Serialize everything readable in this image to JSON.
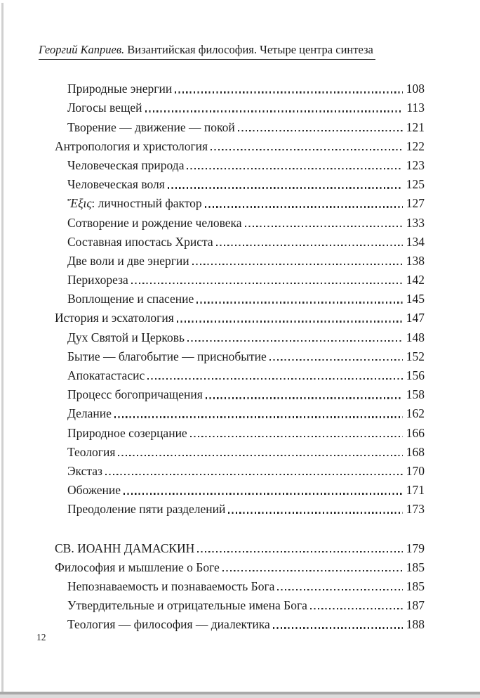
{
  "colors": {
    "text": "#1c1c1c",
    "page_background": "#ffffff",
    "scan_left_line": "#d0d0d0",
    "scan_bottom_dark": "#a9a9a9",
    "scan_bottom_light": "#dcdcdc"
  },
  "header": {
    "author": "Георгий Каприев.",
    "title_rest": " Византийская философия. Четыре центра синтеза"
  },
  "toc": {
    "entries": [
      {
        "level": 2,
        "title": "Природные энергии",
        "page": "108"
      },
      {
        "level": 2,
        "title": "Логосы вещей",
        "page": "113"
      },
      {
        "level": 2,
        "title": "Творение — движение — покой",
        "page": "121"
      },
      {
        "level": 1,
        "title": "Антропология и христология",
        "page": "122"
      },
      {
        "level": 2,
        "title": "Человеческая природа",
        "page": "123"
      },
      {
        "level": 2,
        "title": "Человеческая воля",
        "page": "125"
      },
      {
        "level": 2,
        "italic_prefix": "Ἕξις",
        "title": ": личностный фактор",
        "page": "127"
      },
      {
        "level": 2,
        "title": "Сотворение и рождение человека",
        "page": "133"
      },
      {
        "level": 2,
        "title": "Составная ипостась Христа",
        "page": "134"
      },
      {
        "level": 2,
        "title": "Две воли и две энергии",
        "page": "138"
      },
      {
        "level": 2,
        "title": "Перихореза",
        "page": "142"
      },
      {
        "level": 2,
        "title": "Воплощение и спасение",
        "page": "145"
      },
      {
        "level": 1,
        "title": "История и эсхатология",
        "page": "147"
      },
      {
        "level": 2,
        "title": "Дух Святой и Церковь",
        "page": "148"
      },
      {
        "level": 2,
        "title": "Бытие — благобытие — приснобытие",
        "page": "152"
      },
      {
        "level": 2,
        "title": "Апокатастасис",
        "page": "156"
      },
      {
        "level": 2,
        "title": "Процесс богопричащения",
        "page": "158"
      },
      {
        "level": 2,
        "title": "Делание",
        "page": "162"
      },
      {
        "level": 2,
        "title": "Природное созерцание",
        "page": "166"
      },
      {
        "level": 2,
        "title": "Теология",
        "page": "168"
      },
      {
        "level": 2,
        "title": "Экстаз",
        "page": "170"
      },
      {
        "level": 2,
        "title": "Обожение",
        "page": "171"
      },
      {
        "level": 2,
        "title": "Преодоление пяти разделений",
        "page": "173"
      },
      {
        "level": 0,
        "gap_before": true,
        "title": "СВ. ИОАНН ДАМАСКИН",
        "page": "179"
      },
      {
        "level": 1,
        "title": "Философия и мышление о Боге",
        "page": "185"
      },
      {
        "level": 2,
        "title": "Непознаваемость и познаваемость Бога",
        "page": "185"
      },
      {
        "level": 2,
        "title": "Утвердительные и отрицательные имена Бога",
        "page": "187"
      },
      {
        "level": 2,
        "title": "Теология — философия — диалектика",
        "page": "188"
      }
    ]
  },
  "footer": {
    "page_number": "12"
  }
}
